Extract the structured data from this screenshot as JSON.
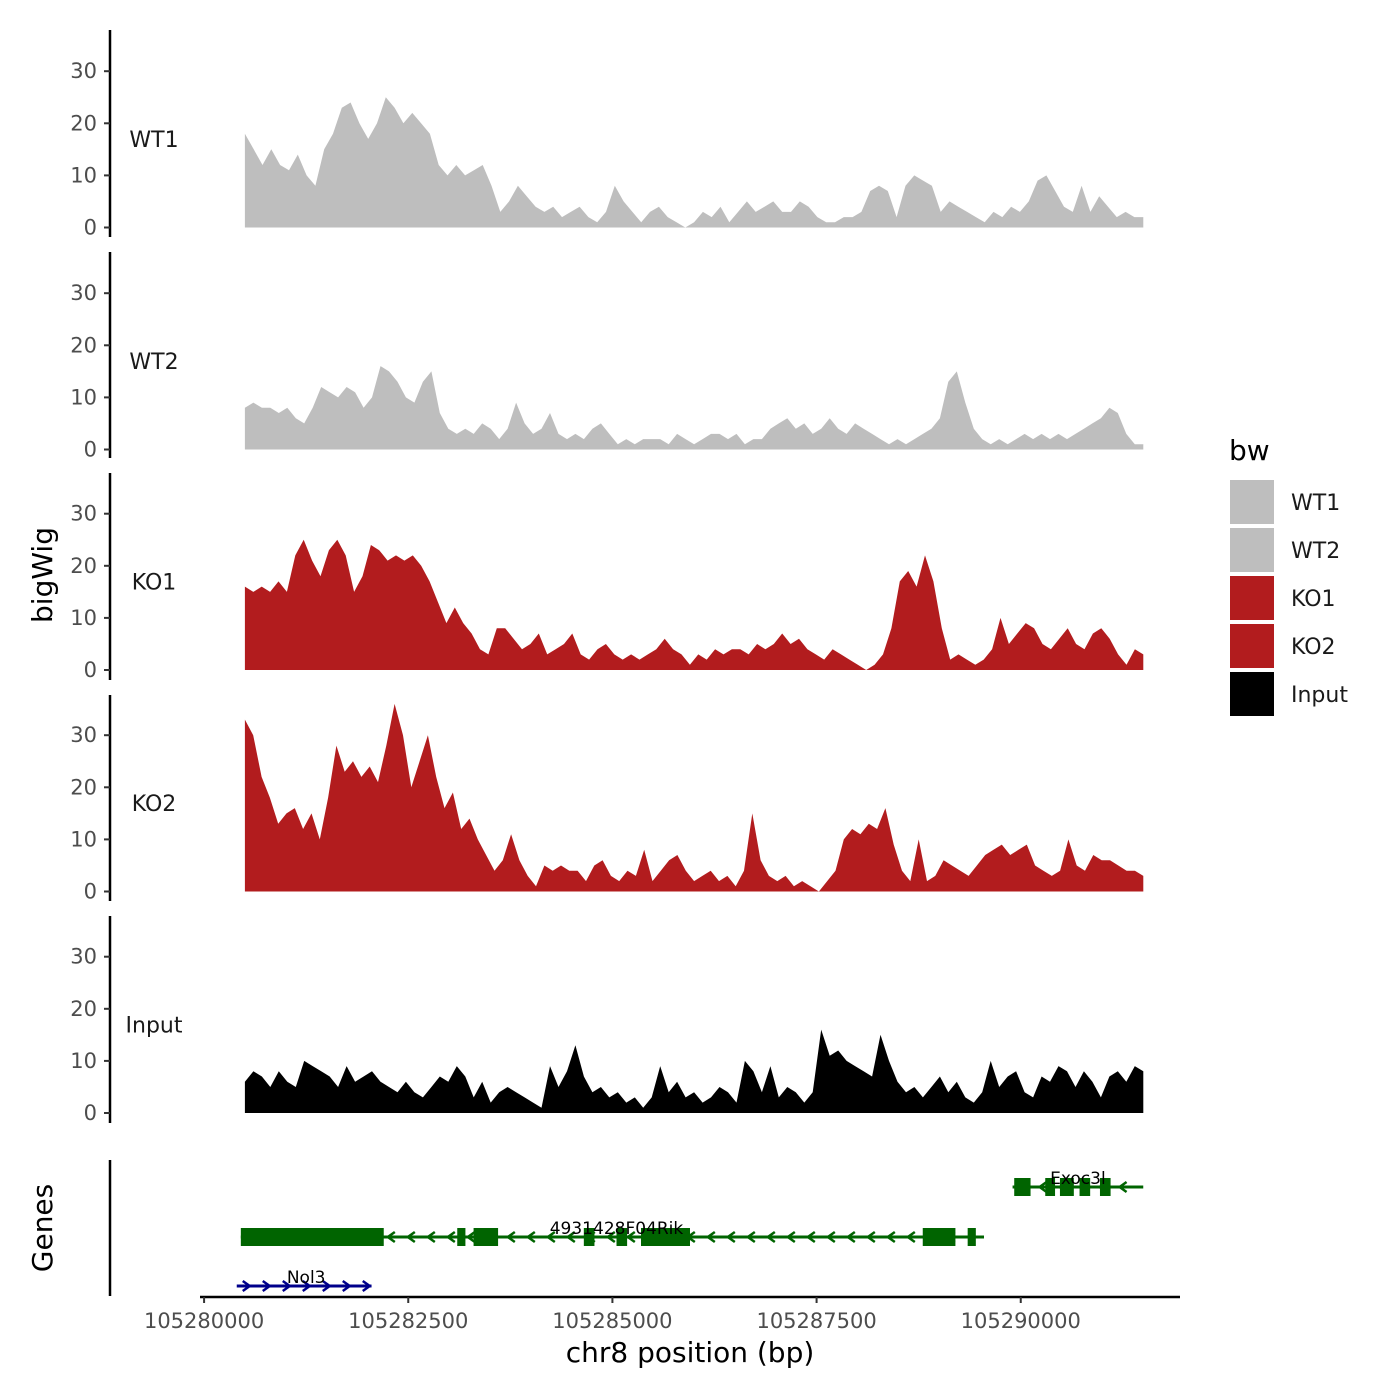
{
  "chart_data": {
    "type": "area",
    "ylabel": "bigWig",
    "xlabel": "chr8 position (bp)",
    "x_range": [
      105279950,
      105291950
    ],
    "x_ticks": [
      105280000,
      105282500,
      105285000,
      105287500,
      105290000
    ],
    "x_tick_labels": [
      "105280000",
      "105282500",
      "105285000",
      "105287500",
      "105290000"
    ],
    "y_range": [
      0,
      38
    ],
    "y_ticks": [
      0,
      10,
      20,
      30
    ],
    "y_tick_labels": [
      "0",
      "10",
      "20",
      "30"
    ],
    "data_x_start": 105280500,
    "data_x_end": 105291500,
    "series": [
      {
        "name": "WT1",
        "color": "#bebebe",
        "values": [
          18,
          15,
          12,
          15,
          12,
          11,
          14,
          10,
          8,
          15,
          18,
          23,
          24,
          20,
          17,
          20,
          25,
          23,
          20,
          22,
          20,
          18,
          12,
          10,
          12,
          10,
          11,
          12,
          8,
          3,
          5,
          8,
          6,
          4,
          3,
          4,
          2,
          3,
          4,
          2,
          1,
          3,
          8,
          5,
          3,
          1,
          3,
          4,
          2,
          1,
          0,
          1,
          3,
          2,
          4,
          1,
          3,
          5,
          3,
          4,
          5,
          3,
          3,
          5,
          4,
          2,
          1,
          1,
          2,
          2,
          3,
          7,
          8,
          7,
          2,
          8,
          10,
          9,
          8,
          3,
          5,
          4,
          3,
          2,
          1,
          3,
          2,
          4,
          3,
          5,
          9,
          10,
          7,
          4,
          3,
          8,
          3,
          6,
          4,
          2,
          3,
          2,
          2
        ]
      },
      {
        "name": "WT2",
        "color": "#bebebe",
        "values": [
          8,
          9,
          8,
          8,
          7,
          8,
          6,
          5,
          8,
          12,
          11,
          10,
          12,
          11,
          8,
          10,
          16,
          15,
          13,
          10,
          9,
          13,
          15,
          7,
          4,
          3,
          4,
          3,
          5,
          4,
          2,
          4,
          9,
          5,
          3,
          4,
          7,
          3,
          2,
          3,
          2,
          4,
          5,
          3,
          1,
          2,
          1,
          2,
          2,
          2,
          1,
          3,
          2,
          1,
          2,
          3,
          3,
          2,
          3,
          1,
          2,
          2,
          4,
          5,
          6,
          4,
          5,
          3,
          4,
          6,
          4,
          3,
          5,
          4,
          3,
          2,
          1,
          2,
          1,
          2,
          3,
          4,
          6,
          13,
          15,
          9,
          4,
          2,
          1,
          2,
          1,
          2,
          3,
          2,
          3,
          2,
          3,
          2,
          3,
          4,
          5,
          6,
          8,
          7,
          3,
          1,
          1
        ]
      },
      {
        "name": "KO1",
        "color": "#b21c1e",
        "values": [
          16,
          15,
          16,
          15,
          17,
          15,
          22,
          25,
          21,
          18,
          23,
          25,
          22,
          15,
          18,
          24,
          23,
          21,
          22,
          21,
          22,
          20,
          17,
          13,
          9,
          12,
          9,
          7,
          4,
          3,
          8,
          8,
          6,
          4,
          5,
          7,
          3,
          4,
          5,
          7,
          3,
          2,
          4,
          5,
          3,
          2,
          3,
          2,
          3,
          4,
          6,
          4,
          3,
          1,
          3,
          2,
          4,
          3,
          4,
          4,
          3,
          5,
          4,
          5,
          7,
          5,
          6,
          4,
          3,
          2,
          4,
          3,
          2,
          1,
          0,
          1,
          3,
          8,
          17,
          19,
          16,
          22,
          17,
          8,
          2,
          3,
          2,
          1,
          2,
          4,
          10,
          5,
          7,
          9,
          8,
          5,
          4,
          6,
          8,
          5,
          4,
          7,
          8,
          6,
          3,
          1,
          4,
          3
        ]
      },
      {
        "name": "KO2",
        "color": "#b21c1e",
        "values": [
          33,
          30,
          22,
          18,
          13,
          15,
          16,
          12,
          15,
          10,
          18,
          28,
          23,
          25,
          22,
          24,
          21,
          28,
          36,
          30,
          20,
          25,
          30,
          22,
          16,
          19,
          12,
          14,
          10,
          7,
          4,
          6,
          11,
          6,
          3,
          1,
          5,
          4,
          5,
          4,
          4,
          2,
          5,
          6,
          3,
          2,
          4,
          3,
          8,
          2,
          4,
          6,
          7,
          4,
          2,
          3,
          4,
          2,
          3,
          1,
          4,
          15,
          6,
          3,
          2,
          3,
          1,
          2,
          1,
          0,
          2,
          4,
          10,
          12,
          11,
          13,
          12,
          16,
          9,
          4,
          2,
          10,
          2,
          3,
          6,
          5,
          4,
          3,
          5,
          7,
          8,
          9,
          7,
          8,
          9,
          5,
          4,
          3,
          4,
          10,
          5,
          4,
          7,
          6,
          6,
          5,
          4,
          4,
          3
        ]
      },
      {
        "name": "Input",
        "color": "#000000",
        "values": [
          6,
          8,
          7,
          5,
          8,
          6,
          5,
          10,
          9,
          8,
          7,
          5,
          9,
          6,
          7,
          8,
          6,
          5,
          4,
          6,
          4,
          3,
          5,
          7,
          6,
          9,
          7,
          3,
          6,
          2,
          4,
          5,
          4,
          3,
          2,
          1,
          9,
          5,
          8,
          13,
          7,
          4,
          5,
          3,
          4,
          2,
          3,
          1,
          3,
          9,
          4,
          6,
          3,
          4,
          2,
          3,
          5,
          4,
          2,
          10,
          8,
          4,
          9,
          3,
          5,
          4,
          2,
          4,
          16,
          11,
          12,
          10,
          9,
          8,
          7,
          15,
          10,
          6,
          4,
          5,
          3,
          5,
          7,
          4,
          6,
          3,
          2,
          4,
          10,
          5,
          7,
          8,
          4,
          3,
          7,
          6,
          9,
          8,
          5,
          8,
          6,
          3,
          7,
          8,
          6,
          9,
          8
        ]
      }
    ],
    "legend": {
      "title": "bw",
      "position": "right",
      "entries": [
        {
          "label": "WT1",
          "color": "#bebebe"
        },
        {
          "label": "WT2",
          "color": "#bebebe"
        },
        {
          "label": "KO1",
          "color": "#b21c1e"
        },
        {
          "label": "KO2",
          "color": "#b21c1e"
        },
        {
          "label": "Input",
          "color": "#000000"
        }
      ]
    },
    "genes_panel_label": "Genes",
    "genes": [
      {
        "name": "Exoc3l",
        "strand": "-",
        "color": "#006400",
        "start": 105289900,
        "end": 105291500,
        "exons": [
          [
            105289920,
            105290120
          ],
          [
            105290300,
            105290420
          ],
          [
            105290480,
            105290650
          ],
          [
            105290720,
            105290850
          ],
          [
            105290970,
            105291100
          ]
        ]
      },
      {
        "name": "4931428F04Rik",
        "strand": "-",
        "color": "#006400",
        "start": 105280450,
        "end": 105289550,
        "exons": [
          [
            105280450,
            105282200
          ],
          [
            105283100,
            105283200
          ],
          [
            105283300,
            105283600
          ],
          [
            105284650,
            105284780
          ],
          [
            105285050,
            105285180
          ],
          [
            105285350,
            105285950
          ],
          [
            105288800,
            105289200
          ],
          [
            105289350,
            105289450
          ]
        ]
      },
      {
        "name": "Nol3",
        "strand": "+",
        "color": "#00008b",
        "start": 105280400,
        "end": 105282050,
        "exons": []
      }
    ]
  }
}
